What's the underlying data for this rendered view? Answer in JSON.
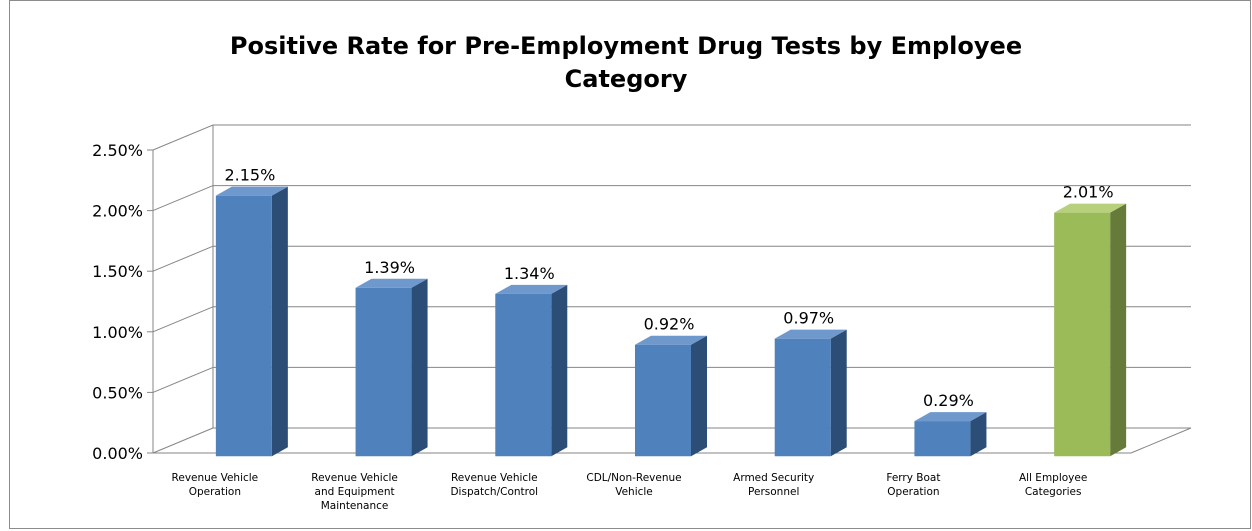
{
  "chart_data": {
    "type": "bar",
    "title": "Positive Rate for Pre-Employment Drug Tests by Employee Category",
    "xlabel": "",
    "ylabel": "",
    "ylim": [
      0,
      0.025
    ],
    "y_ticks": [
      "0.00%",
      "0.50%",
      "1.00%",
      "1.50%",
      "2.00%",
      "2.50%"
    ],
    "categories": [
      [
        "Revenue Vehicle",
        "Operation"
      ],
      [
        "Revenue Vehicle",
        "and Equipment",
        "Maintenance"
      ],
      [
        "Revenue Vehicle",
        "Dispatch/Control"
      ],
      [
        "CDL/Non-Revenue",
        "Vehicle"
      ],
      [
        "Armed Security",
        "Personnel"
      ],
      [
        "Ferry Boat",
        "Operation"
      ],
      [
        "All Employee",
        "Categories"
      ]
    ],
    "values": [
      0.0215,
      0.0139,
      0.0134,
      0.0092,
      0.0097,
      0.0029,
      0.0201
    ],
    "data_labels": [
      "2.15%",
      "1.39%",
      "1.34%",
      "0.92%",
      "0.97%",
      "0.29%",
      "2.01%"
    ],
    "grid": true,
    "legend": "none",
    "style": "3d-column"
  },
  "colors": {
    "bar_front": "#4f81bd",
    "bar_side": "#2c4d75",
    "bar_top": "#6f98cc",
    "highlight_front": "#9bbb59",
    "highlight_side": "#667b3a",
    "highlight_top": "#b6d07c",
    "grid": "#868686",
    "frame": "#8c8c8c"
  },
  "highlight_index": 6
}
